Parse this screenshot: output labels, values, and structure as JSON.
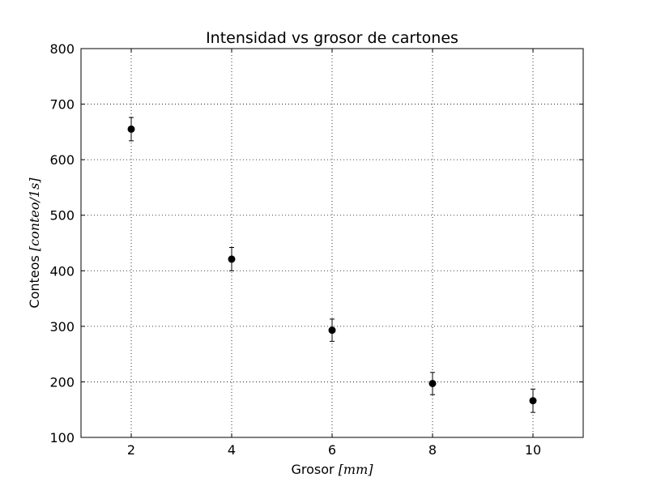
{
  "chart_data": {
    "type": "scatter",
    "title": "Intensidad vs grosor de cartones",
    "xlabel": "Grosor",
    "xlabel_unit": "[mm]",
    "ylabel": "Conteos",
    "ylabel_unit": "[conteo/1s]",
    "xlim": [
      1,
      11
    ],
    "ylim": [
      100,
      800
    ],
    "x_ticks": [
      "2",
      "4",
      "6",
      "8",
      "10"
    ],
    "y_ticks": [
      "100",
      "200",
      "300",
      "400",
      "500",
      "600",
      "700",
      "800"
    ],
    "grid": true,
    "series": [
      {
        "color": "#000000",
        "points": [
          {
            "x": 2,
            "y": 655,
            "yerr": 21
          },
          {
            "x": 4,
            "y": 421,
            "yerr": 21
          },
          {
            "x": 6,
            "y": 293,
            "yerr": 20
          },
          {
            "x": 8,
            "y": 197,
            "yerr": 20
          },
          {
            "x": 10,
            "y": 166,
            "yerr": 21
          }
        ]
      }
    ]
  }
}
